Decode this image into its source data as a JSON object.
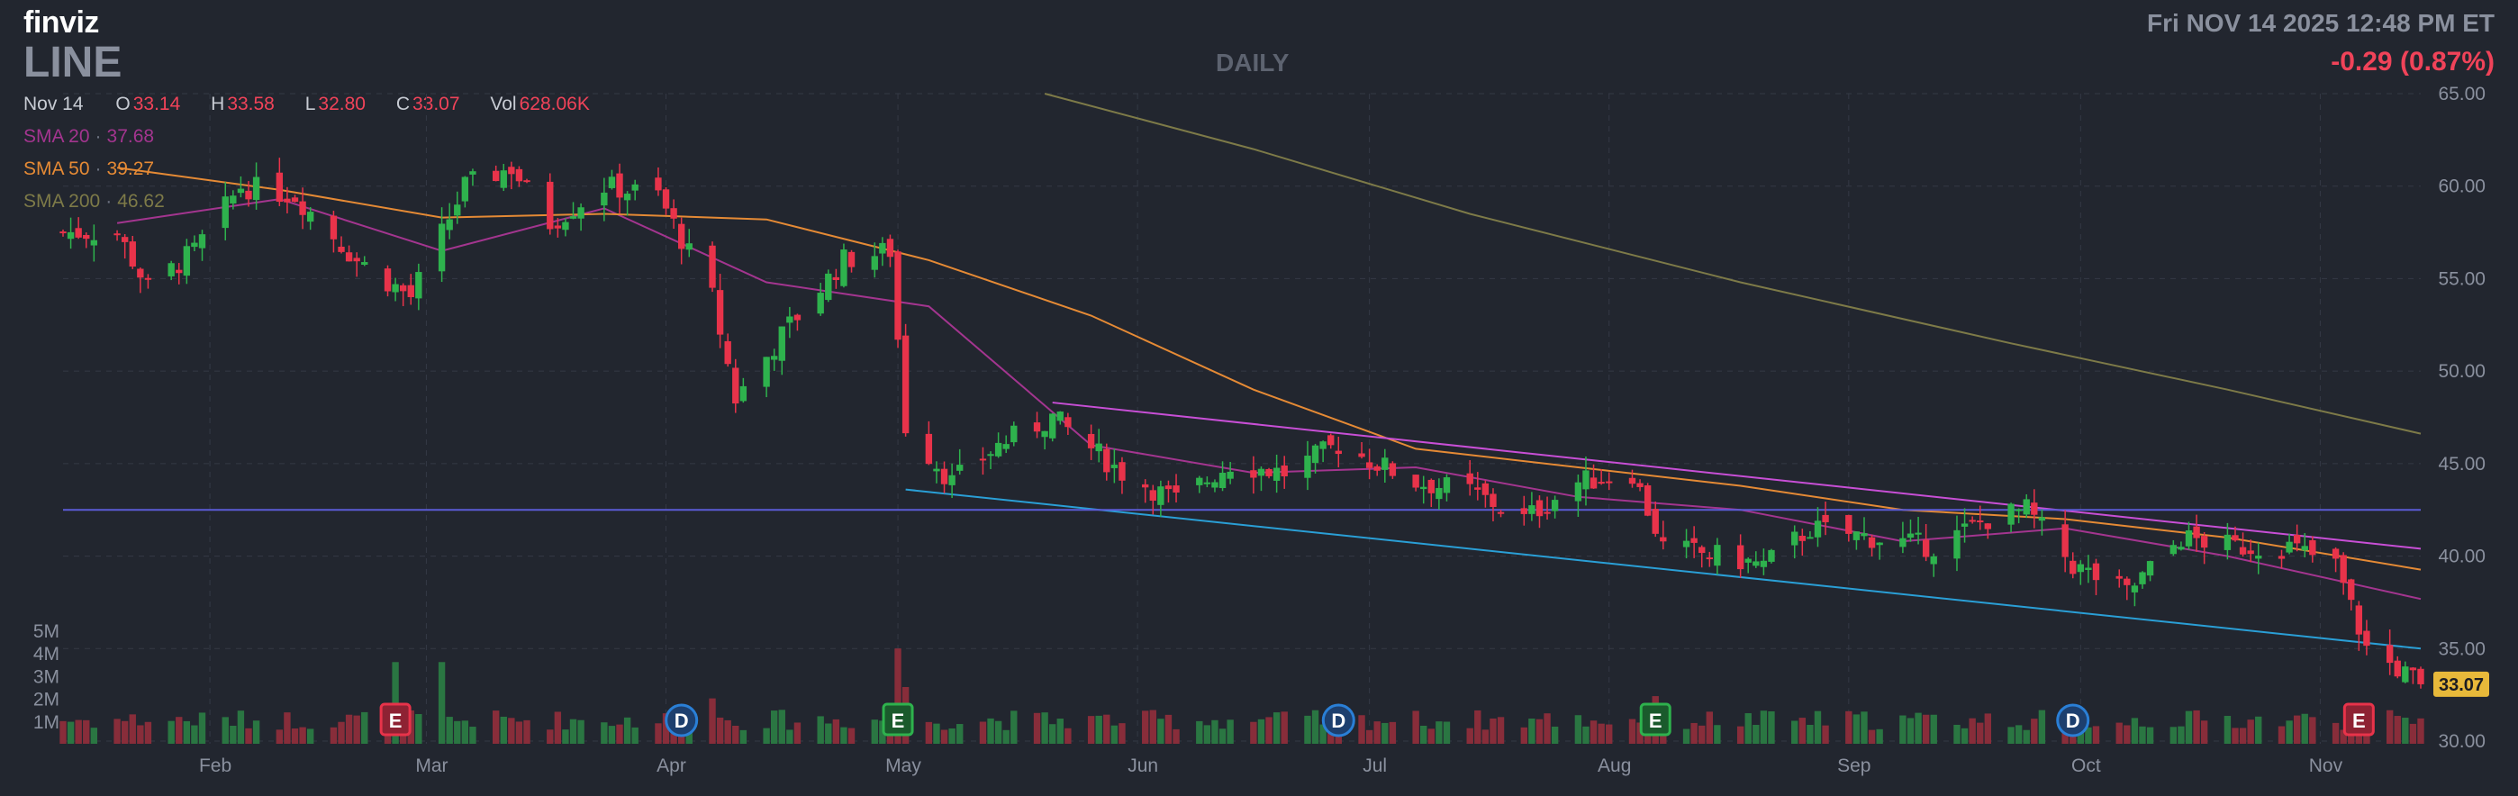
{
  "header": {
    "logo": "finviz",
    "ticker": "LINE",
    "datetime": "Fri NOV 14 2025 12:48 PM ET",
    "change": "-0.29 (0.87%)",
    "timeframe": "DAILY"
  },
  "ohlc": {
    "date": "Nov 14",
    "open_label": "O",
    "open": "33.14",
    "high_label": "H",
    "high": "33.58",
    "low_label": "L",
    "low": "32.80",
    "close_label": "C",
    "close": "33.07",
    "vol_label": "Vol",
    "volume": "628.06K"
  },
  "sma": {
    "sma20": {
      "label": "SMA 20",
      "value": "37.68",
      "color": "#a3358f"
    },
    "sma50": {
      "label": "SMA 50",
      "value": "39.27",
      "color": "#e58a35"
    },
    "sma200": {
      "label": "SMA 200",
      "value": "46.62",
      "color": "#7d7a48"
    }
  },
  "colors": {
    "background": "#22262f",
    "up": "#2eb24d",
    "down": "#e8334a",
    "grid": "#343945",
    "resistance_line": "#c84fd6",
    "support_line": "#2a9fd6",
    "horizontal_line": "#5b5bd6",
    "last_price_badge": "#e8b93a"
  },
  "chart_data": {
    "type": "candlestick",
    "title": "DAILY",
    "ticker": "LINE",
    "x_ticks": [
      "Feb",
      "Mar",
      "Apr",
      "May",
      "Jun",
      "Jul",
      "Aug",
      "Sep",
      "Oct",
      "Nov"
    ],
    "y_ticks": [
      "65.00",
      "60.00",
      "55.00",
      "50.00",
      "45.00",
      "40.00",
      "35.00",
      "30.00"
    ],
    "ylim": [
      30,
      65
    ],
    "volume_ticks": [
      "5M",
      "4M",
      "3M",
      "2M",
      "1M"
    ],
    "volume_ylim": [
      0,
      5000000
    ],
    "last_price": "33.07",
    "grid": true,
    "anchors": [
      {
        "date": "2025-01-20",
        "close": 57.5
      },
      {
        "date": "2025-01-24",
        "close": 54.5
      },
      {
        "date": "2025-01-30",
        "close": 56.5
      },
      {
        "date": "2025-02-05",
        "close": 60.0
      },
      {
        "date": "2025-02-12",
        "close": 59.5
      },
      {
        "date": "2025-02-20",
        "close": 56.0
      },
      {
        "date": "2025-02-27",
        "close": 54.0
      },
      {
        "date": "2025-03-06",
        "close": 60.0
      },
      {
        "date": "2025-03-12",
        "close": 61.0
      },
      {
        "date": "2025-03-17",
        "close": 58.0
      },
      {
        "date": "2025-03-24",
        "close": 60.0
      },
      {
        "date": "2025-03-31",
        "close": 59.5
      },
      {
        "date": "2025-04-07",
        "close": 54.0
      },
      {
        "date": "2025-04-10",
        "close": 48.5
      },
      {
        "date": "2025-04-17",
        "close": 52.5
      },
      {
        "date": "2025-04-24",
        "close": 56.0
      },
      {
        "date": "2025-04-30",
        "close": 56.5
      },
      {
        "date": "2025-05-02",
        "close": 47.0
      },
      {
        "date": "2025-05-08",
        "close": 44.0
      },
      {
        "date": "2025-05-14",
        "close": 46.0
      },
      {
        "date": "2025-05-21",
        "close": 47.5
      },
      {
        "date": "2025-05-30",
        "close": 44.5
      },
      {
        "date": "2025-06-06",
        "close": 43.0
      },
      {
        "date": "2025-06-13",
        "close": 45.0
      },
      {
        "date": "2025-06-20",
        "close": 44.5
      },
      {
        "date": "2025-06-27",
        "close": 46.0
      },
      {
        "date": "2025-07-07",
        "close": 44.0
      },
      {
        "date": "2025-07-14",
        "close": 43.5
      },
      {
        "date": "2025-07-21",
        "close": 42.0
      },
      {
        "date": "2025-07-28",
        "close": 44.0
      },
      {
        "date": "2025-08-04",
        "close": 44.5
      },
      {
        "date": "2025-08-08",
        "close": 40.5
      },
      {
        "date": "2025-08-15",
        "close": 40.0
      },
      {
        "date": "2025-08-21",
        "close": 39.5
      },
      {
        "date": "2025-08-27",
        "close": 41.5
      },
      {
        "date": "2025-09-04",
        "close": 41.0
      },
      {
        "date": "2025-09-12",
        "close": 40.5
      },
      {
        "date": "2025-09-19",
        "close": 42.0
      },
      {
        "date": "2025-09-24",
        "close": 42.5
      },
      {
        "date": "2025-09-30",
        "close": 39.5
      },
      {
        "date": "2025-10-07",
        "close": 38.0
      },
      {
        "date": "2025-10-14",
        "close": 41.0
      },
      {
        "date": "2025-10-21",
        "close": 40.5
      },
      {
        "date": "2025-10-28",
        "close": 40.5
      },
      {
        "date": "2025-11-03",
        "close": 39.5
      },
      {
        "date": "2025-11-07",
        "close": 35.0
      },
      {
        "date": "2025-11-14",
        "close": 33.07
      }
    ],
    "series": [
      {
        "name": "SMA 20",
        "color": "#a3358f",
        "values": [
          [
            "2025-01-20",
            58.0
          ],
          [
            "2025-02-10",
            59.3
          ],
          [
            "2025-03-03",
            56.5
          ],
          [
            "2025-03-24",
            58.8
          ],
          [
            "2025-04-14",
            54.8
          ],
          [
            "2025-05-05",
            53.5
          ],
          [
            "2025-05-26",
            46.0
          ],
          [
            "2025-06-16",
            44.5
          ],
          [
            "2025-07-07",
            44.8
          ],
          [
            "2025-07-28",
            43.2
          ],
          [
            "2025-08-18",
            42.5
          ],
          [
            "2025-09-08",
            40.8
          ],
          [
            "2025-09-29",
            41.5
          ],
          [
            "2025-10-20",
            40.0
          ],
          [
            "2025-11-14",
            37.68
          ]
        ]
      },
      {
        "name": "SMA 50",
        "color": "#e58a35",
        "values": [
          [
            "2025-01-20",
            61.0
          ],
          [
            "2025-02-10",
            59.8
          ],
          [
            "2025-03-03",
            58.3
          ],
          [
            "2025-03-24",
            58.5
          ],
          [
            "2025-04-14",
            58.2
          ],
          [
            "2025-05-05",
            56.0
          ],
          [
            "2025-05-26",
            53.0
          ],
          [
            "2025-06-16",
            49.0
          ],
          [
            "2025-07-07",
            45.8
          ],
          [
            "2025-07-28",
            44.8
          ],
          [
            "2025-08-18",
            43.8
          ],
          [
            "2025-09-08",
            42.5
          ],
          [
            "2025-09-29",
            42.0
          ],
          [
            "2025-10-20",
            41.0
          ],
          [
            "2025-11-14",
            39.27
          ]
        ]
      },
      {
        "name": "SMA 200",
        "color": "#7d7a48",
        "values": [
          [
            "2025-05-20",
            65.0
          ],
          [
            "2025-06-16",
            62.0
          ],
          [
            "2025-07-14",
            58.5
          ],
          [
            "2025-08-18",
            54.8
          ],
          [
            "2025-09-22",
            51.5
          ],
          [
            "2025-10-20",
            49.0
          ],
          [
            "2025-11-14",
            46.62
          ]
        ]
      }
    ],
    "trendlines": [
      {
        "role": "resistance",
        "color": "#c84fd6",
        "from": [
          "2025-05-21",
          48.3
        ],
        "to": [
          "2025-11-14",
          40.4
        ]
      },
      {
        "role": "support",
        "color": "#2a9fd6",
        "from": [
          "2025-05-02",
          43.6
        ],
        "to": [
          "2025-11-14",
          35.0
        ]
      },
      {
        "role": "horizontal",
        "color": "#5b5bd6",
        "from": [
          "2025-01-13",
          42.5
        ],
        "to": [
          "2025-11-14",
          42.5
        ]
      }
    ],
    "events": [
      {
        "label": "E",
        "date": "2025-02-25",
        "color": "#e8334a"
      },
      {
        "label": "D",
        "date": "2025-04-03",
        "color": "#2a7fd6"
      },
      {
        "label": "E",
        "date": "2025-05-01",
        "color": "#2eb24d"
      },
      {
        "label": "D",
        "date": "2025-06-27",
        "color": "#2a7fd6"
      },
      {
        "label": "E",
        "date": "2025-08-07",
        "color": "#2eb24d"
      },
      {
        "label": "D",
        "date": "2025-09-30",
        "color": "#2a7fd6"
      },
      {
        "label": "E",
        "date": "2025-11-06",
        "color": "#e8334a"
      }
    ]
  }
}
